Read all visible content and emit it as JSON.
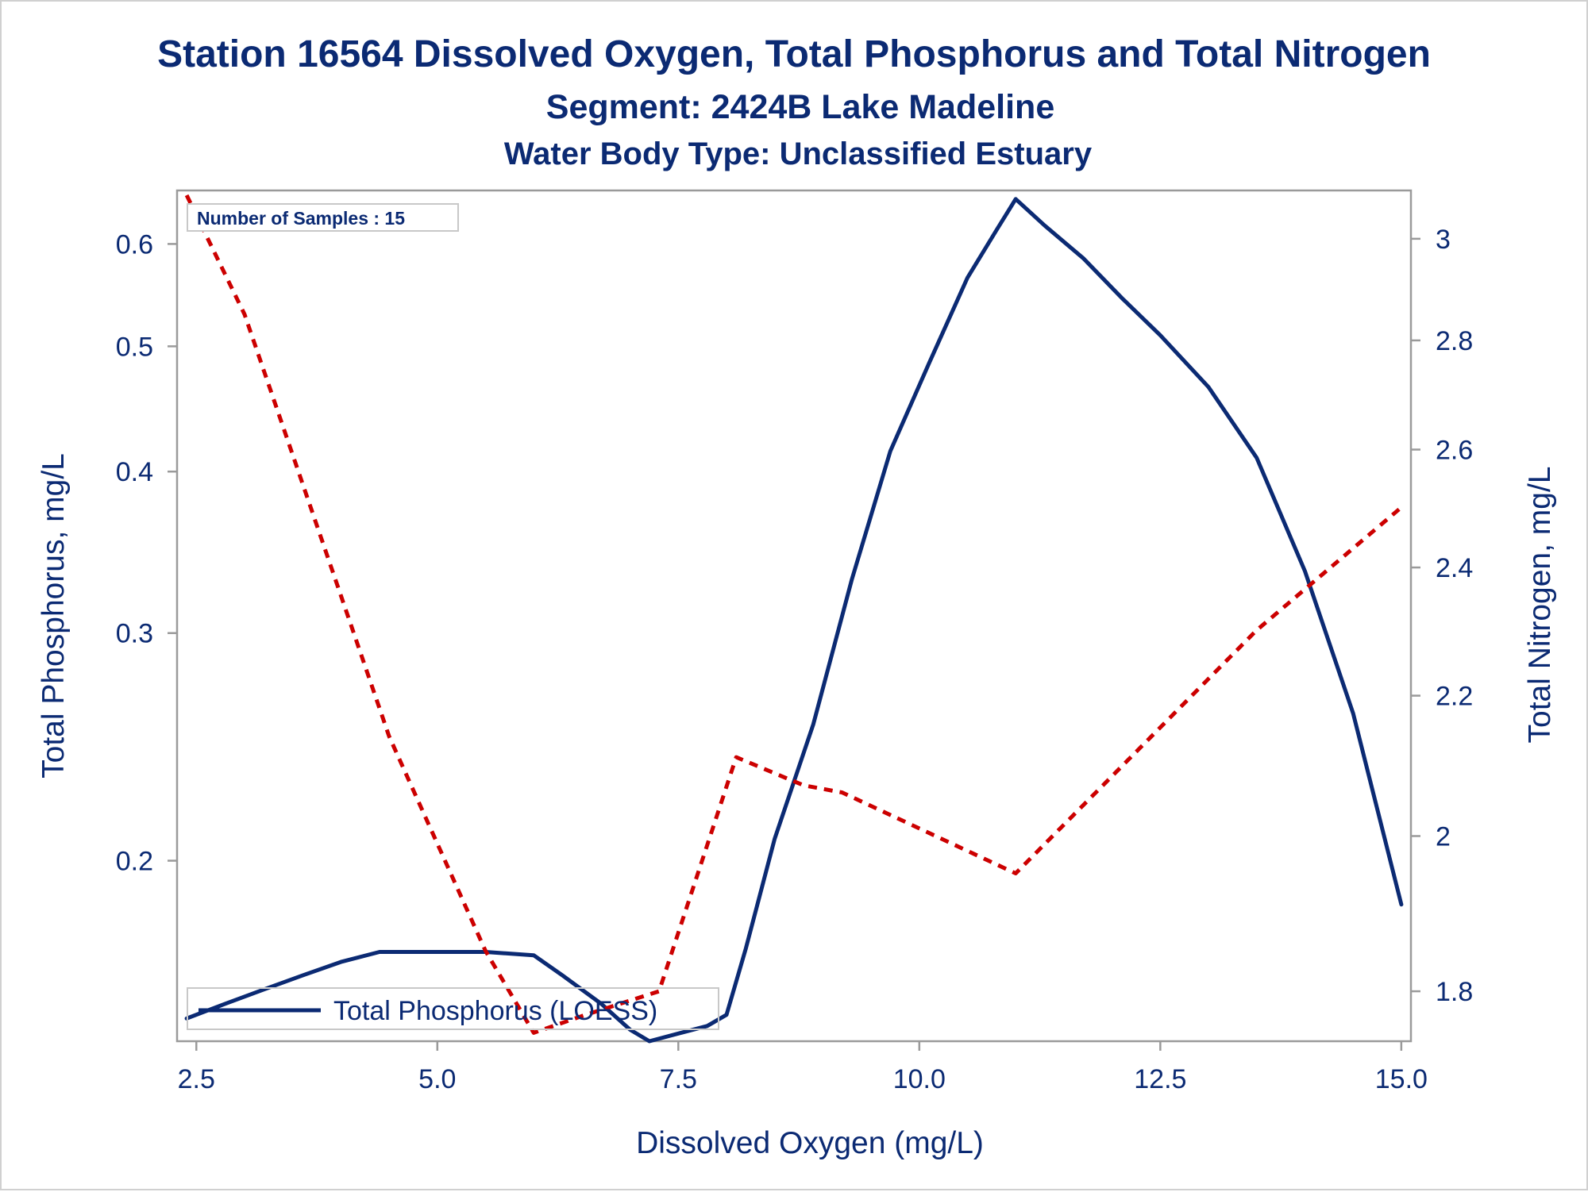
{
  "chart_data": {
    "type": "line",
    "title": "Station 16564  Dissolved Oxygen, Total Phosphorus and Total Nitrogen",
    "subtitle": "Segment: 2424B  Lake Madeline",
    "subtitle2": "Water Body Type: Unclassified Estuary",
    "xlabel": "Dissolved Oxygen (mg/L)",
    "ylabel_left": "Total Phosphorus, mg/L",
    "ylabel_right": "Total Nitrogen, mg/L",
    "x_ticks": [
      "2.5",
      "5.0",
      "7.5",
      "10.0",
      "12.5",
      "15.0"
    ],
    "y_left_ticks": [
      "0.2",
      "0.3",
      "0.4",
      "0.5",
      "0.6"
    ],
    "y_right_ticks": [
      "1.8",
      "2",
      "2.2",
      "2.4",
      "2.6",
      "2.8",
      "3"
    ],
    "xlim": [
      2.3,
      15.1
    ],
    "y_left_scale": "log",
    "y_left_lim": [
      0.145,
      0.66
    ],
    "y_right_scale": "log",
    "y_right_lim": [
      1.74,
      3.1
    ],
    "grid": false,
    "inset_text": "Number of Samples : 15",
    "legend": {
      "placement": "bottom-left",
      "entries": [
        "Total Phosphorus (LOESS)"
      ]
    },
    "series": [
      {
        "name": "Total Phosphorus (LOESS)",
        "axis": "left",
        "color": "#0b2a73",
        "style": "solid",
        "x": [
          2.4,
          2.8,
          3.2,
          3.6,
          4.0,
          4.4,
          4.6,
          5.0,
          5.5,
          6.0,
          6.3,
          6.7,
          7.0,
          7.2,
          7.5,
          7.8,
          8.0,
          8.2,
          8.5,
          8.9,
          9.3,
          9.7,
          10.1,
          10.5,
          10.8,
          11.0,
          11.3,
          11.7,
          12.1,
          12.5,
          13.0,
          13.5,
          14.0,
          14.5,
          15.0
        ],
        "values": [
          0.151,
          0.155,
          0.159,
          0.163,
          0.167,
          0.17,
          0.17,
          0.17,
          0.17,
          0.169,
          0.163,
          0.155,
          0.148,
          0.145,
          0.147,
          0.149,
          0.152,
          0.171,
          0.208,
          0.255,
          0.33,
          0.415,
          0.485,
          0.565,
          0.615,
          0.65,
          0.62,
          0.585,
          0.545,
          0.51,
          0.465,
          0.41,
          0.335,
          0.26,
          0.185
        ]
      },
      {
        "name": "",
        "axis": "right",
        "color": "#cc0000",
        "style": "dashed",
        "x": [
          2.4,
          3.0,
          4.5,
          5.5,
          6.0,
          6.5,
          7.3,
          8.1,
          8.8,
          9.2,
          11.0,
          13.5,
          15.0
        ],
        "values": [
          3.09,
          2.85,
          2.14,
          1.85,
          1.75,
          1.77,
          1.8,
          2.11,
          2.07,
          2.06,
          1.95,
          2.3,
          2.5
        ]
      }
    ]
  }
}
